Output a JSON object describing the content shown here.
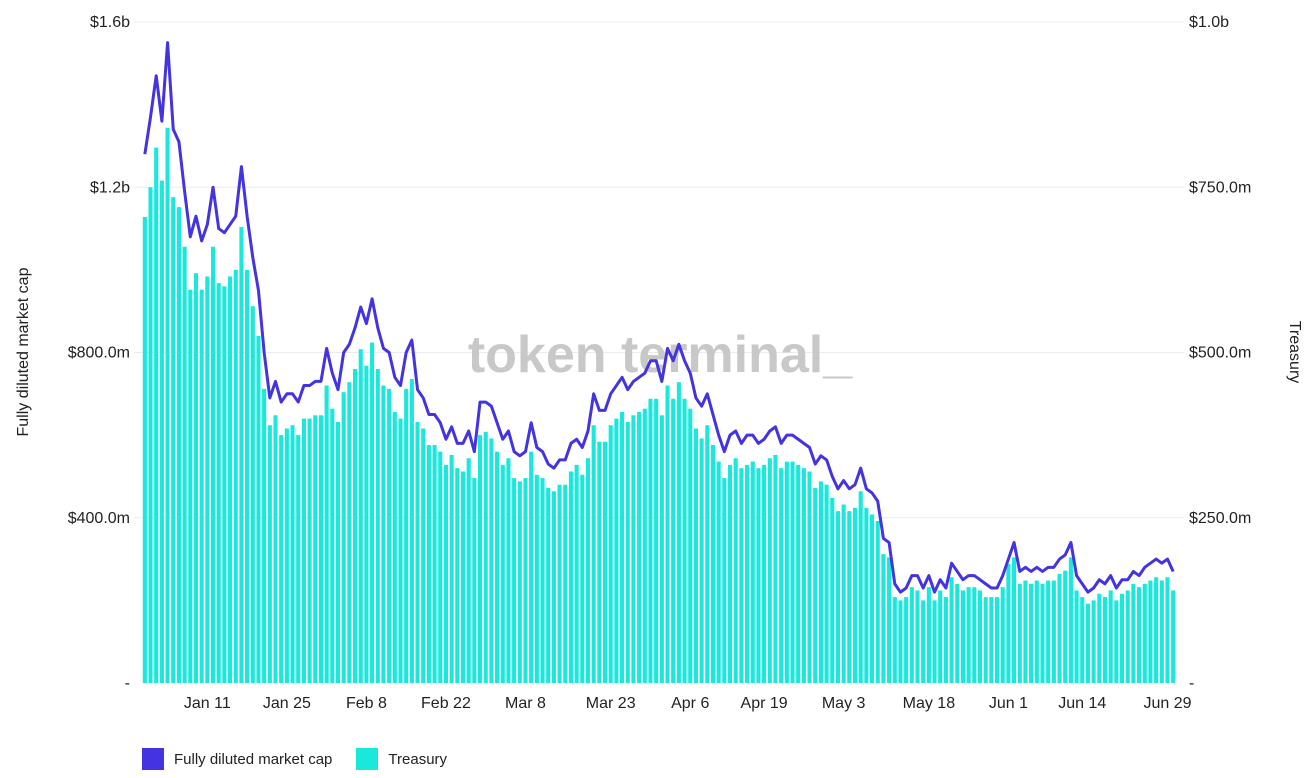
{
  "watermark": "token terminal_",
  "colors": {
    "fdmc_line": "#4433e0",
    "treasury_bar": "#19e8db",
    "grid": "#ececec",
    "text": "#222222",
    "watermark": "#c8c8c8"
  },
  "legend": [
    {
      "label": "Fully diluted market cap",
      "color": "#4433e0"
    },
    {
      "label": "Treasury",
      "color": "#19e8db"
    }
  ],
  "chart_data": {
    "type": "bar+line",
    "title": "",
    "x_tick_labels": [
      "Jan 11",
      "Jan 25",
      "Feb 8",
      "Feb 22",
      "Mar 8",
      "Mar 23",
      "Apr 6",
      "Apr 19",
      "May 3",
      "May 18",
      "Jun 1",
      "Jun 14",
      "Jun 29"
    ],
    "x_tick_index": [
      11,
      25,
      39,
      53,
      67,
      82,
      96,
      109,
      123,
      138,
      152,
      165,
      180
    ],
    "left_axis": {
      "label": "Fully diluted market cap",
      "ylim": [
        0,
        1.6
      ],
      "unit": "$b",
      "ticks": [
        "-",
        "$400.0m",
        "$800.0m",
        "$1.2b",
        "$1.6b"
      ]
    },
    "right_axis": {
      "label": "Treasury",
      "ylim": [
        0,
        1.0
      ],
      "unit": "$b",
      "ticks": [
        "-",
        "$250.0m",
        "$500.0m",
        "$750.0m",
        "$1.0b"
      ]
    },
    "series": [
      {
        "name": "Fully diluted market cap",
        "type": "line",
        "axis": "left",
        "unit": "$b",
        "values": [
          1.28,
          1.37,
          1.47,
          1.36,
          1.55,
          1.34,
          1.31,
          1.19,
          1.08,
          1.13,
          1.07,
          1.11,
          1.2,
          1.1,
          1.09,
          1.11,
          1.13,
          1.25,
          1.13,
          1.03,
          0.95,
          0.8,
          0.69,
          0.73,
          0.68,
          0.7,
          0.7,
          0.68,
          0.72,
          0.72,
          0.73,
          0.73,
          0.81,
          0.75,
          0.71,
          0.8,
          0.82,
          0.86,
          0.91,
          0.87,
          0.93,
          0.86,
          0.81,
          0.8,
          0.74,
          0.72,
          0.8,
          0.83,
          0.71,
          0.69,
          0.65,
          0.65,
          0.63,
          0.59,
          0.62,
          0.58,
          0.58,
          0.61,
          0.56,
          0.68,
          0.68,
          0.67,
          0.63,
          0.59,
          0.61,
          0.56,
          0.55,
          0.56,
          0.63,
          0.57,
          0.56,
          0.53,
          0.52,
          0.54,
          0.54,
          0.58,
          0.59,
          0.57,
          0.61,
          0.7,
          0.66,
          0.66,
          0.7,
          0.72,
          0.74,
          0.71,
          0.73,
          0.74,
          0.75,
          0.78,
          0.78,
          0.73,
          0.81,
          0.78,
          0.82,
          0.78,
          0.75,
          0.69,
          0.67,
          0.7,
          0.65,
          0.6,
          0.56,
          0.6,
          0.61,
          0.58,
          0.6,
          0.6,
          0.58,
          0.59,
          0.61,
          0.62,
          0.58,
          0.6,
          0.6,
          0.59,
          0.58,
          0.57,
          0.53,
          0.55,
          0.54,
          0.5,
          0.47,
          0.49,
          0.47,
          0.48,
          0.52,
          0.47,
          0.46,
          0.44,
          0.35,
          0.34,
          0.24,
          0.22,
          0.23,
          0.26,
          0.26,
          0.23,
          0.26,
          0.22,
          0.25,
          0.23,
          0.29,
          0.27,
          0.25,
          0.26,
          0.26,
          0.25,
          0.24,
          0.23,
          0.23,
          0.26,
          0.3,
          0.34,
          0.27,
          0.28,
          0.27,
          0.28,
          0.27,
          0.28,
          0.28,
          0.3,
          0.31,
          0.34,
          0.26,
          0.24,
          0.22,
          0.23,
          0.25,
          0.24,
          0.26,
          0.23,
          0.25,
          0.25,
          0.27,
          0.26,
          0.28,
          0.29,
          0.3,
          0.29,
          0.3,
          0.27
        ]
      },
      {
        "name": "Treasury",
        "type": "bar",
        "axis": "right",
        "unit": "$b",
        "values": [
          0.705,
          0.75,
          0.81,
          0.76,
          0.84,
          0.735,
          0.72,
          0.66,
          0.595,
          0.62,
          0.595,
          0.615,
          0.66,
          0.605,
          0.6,
          0.615,
          0.625,
          0.69,
          0.625,
          0.57,
          0.525,
          0.445,
          0.39,
          0.405,
          0.375,
          0.385,
          0.39,
          0.375,
          0.4,
          0.4,
          0.405,
          0.405,
          0.45,
          0.415,
          0.395,
          0.44,
          0.455,
          0.475,
          0.505,
          0.48,
          0.515,
          0.475,
          0.45,
          0.445,
          0.41,
          0.4,
          0.445,
          0.46,
          0.395,
          0.385,
          0.36,
          0.36,
          0.35,
          0.33,
          0.345,
          0.325,
          0.32,
          0.34,
          0.31,
          0.375,
          0.38,
          0.37,
          0.35,
          0.33,
          0.34,
          0.31,
          0.305,
          0.31,
          0.35,
          0.315,
          0.31,
          0.295,
          0.29,
          0.3,
          0.3,
          0.32,
          0.33,
          0.315,
          0.34,
          0.39,
          0.365,
          0.365,
          0.39,
          0.4,
          0.41,
          0.395,
          0.405,
          0.41,
          0.415,
          0.43,
          0.43,
          0.405,
          0.45,
          0.43,
          0.455,
          0.43,
          0.415,
          0.385,
          0.37,
          0.39,
          0.36,
          0.335,
          0.31,
          0.33,
          0.34,
          0.325,
          0.33,
          0.335,
          0.325,
          0.33,
          0.34,
          0.345,
          0.325,
          0.335,
          0.335,
          0.33,
          0.325,
          0.32,
          0.295,
          0.305,
          0.3,
          0.28,
          0.26,
          0.27,
          0.26,
          0.265,
          0.29,
          0.265,
          0.255,
          0.245,
          0.195,
          0.19,
          0.13,
          0.125,
          0.13,
          0.145,
          0.14,
          0.125,
          0.145,
          0.125,
          0.14,
          0.13,
          0.16,
          0.15,
          0.14,
          0.145,
          0.145,
          0.14,
          0.13,
          0.13,
          0.13,
          0.145,
          0.18,
          0.19,
          0.15,
          0.155,
          0.15,
          0.155,
          0.15,
          0.155,
          0.155,
          0.165,
          0.17,
          0.19,
          0.14,
          0.13,
          0.12,
          0.125,
          0.135,
          0.13,
          0.14,
          0.125,
          0.135,
          0.14,
          0.15,
          0.145,
          0.15,
          0.155,
          0.16,
          0.155,
          0.16,
          0.14
        ]
      }
    ]
  }
}
